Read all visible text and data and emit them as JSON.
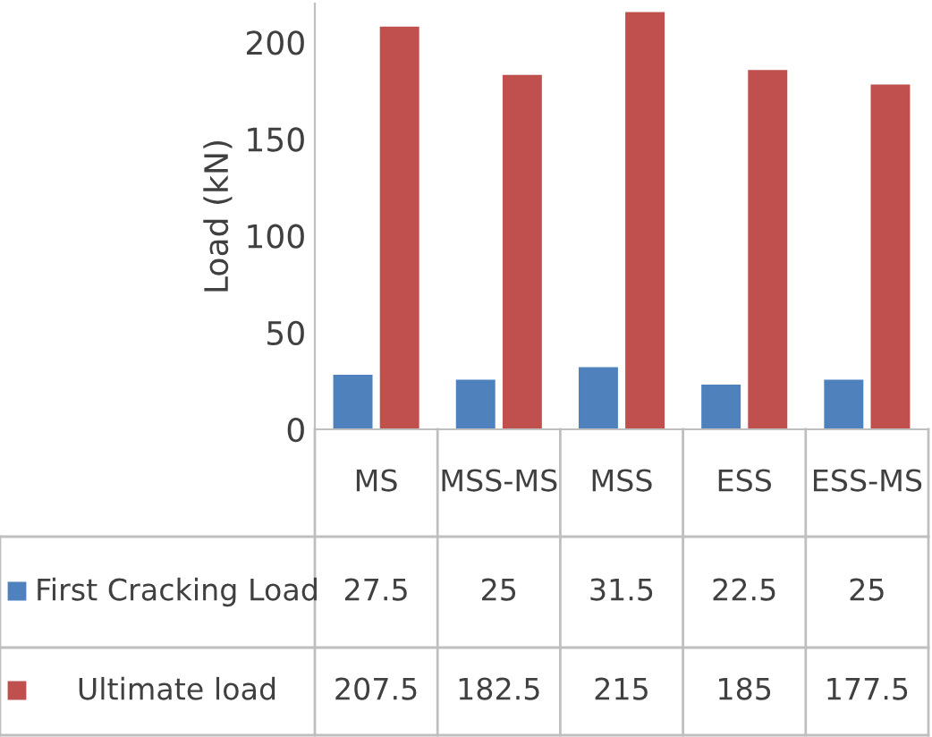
{
  "chart_data": {
    "type": "bar",
    "ylabel": "Load (kN)",
    "categories": [
      "MS",
      "MSS-MS",
      "MSS",
      "ESS",
      "ESS-MS"
    ],
    "series": [
      {
        "name": "First Cracking Load",
        "color": "#4f81bd",
        "values": [
          27.5,
          25,
          31.5,
          22.5,
          25
        ]
      },
      {
        "name": "Ultimate load",
        "color": "#c0504d",
        "values": [
          207.5,
          182.5,
          215,
          185,
          177.5
        ]
      }
    ],
    "ylim": [
      0,
      220
    ],
    "yticks": [
      0,
      50,
      100,
      150,
      200
    ],
    "grid": false,
    "legend": "bottom",
    "data_labels": true
  }
}
